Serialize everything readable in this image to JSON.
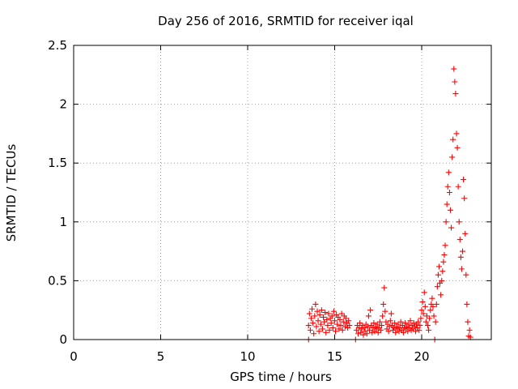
{
  "chart_data": {
    "type": "scatter",
    "title": "Day 256 of 2016, SRMTID for receiver iqal",
    "xlabel": "GPS time / hours",
    "ylabel": "SRMTID / TECUs",
    "xlim": [
      0,
      24
    ],
    "ylim": [
      0,
      2.5
    ],
    "xticks": [
      0,
      5,
      10,
      15,
      20
    ],
    "xtick_labels": [
      "0",
      "5",
      "10",
      "15",
      "20"
    ],
    "yticks": [
      0,
      0.5,
      1,
      1.5,
      2,
      2.5
    ],
    "ytick_labels": [
      "0",
      "0.5",
      "1",
      "1.5",
      "2",
      "2.5"
    ],
    "grid": true,
    "marker": "plus",
    "series": [
      {
        "name": "SRMTID",
        "color": "#ff0000",
        "points": [
          [
            13.5,
            0.0
          ],
          [
            13.5,
            0.12
          ],
          [
            13.55,
            0.22
          ],
          [
            13.6,
            0.08
          ],
          [
            13.65,
            0.18
          ],
          [
            13.7,
            0.26
          ],
          [
            13.75,
            0.14
          ],
          [
            13.8,
            0.05
          ],
          [
            13.85,
            0.2
          ],
          [
            13.9,
            0.3
          ],
          [
            13.95,
            0.11
          ],
          [
            14.0,
            0.24
          ],
          [
            14.05,
            0.16
          ],
          [
            14.1,
            0.07
          ],
          [
            14.15,
            0.21
          ],
          [
            14.2,
            0.13
          ],
          [
            14.25,
            0.25
          ],
          [
            14.3,
            0.09
          ],
          [
            14.35,
            0.19
          ],
          [
            14.4,
            0.15
          ],
          [
            14.45,
            0.23
          ],
          [
            14.5,
            0.06
          ],
          [
            14.55,
            0.17
          ],
          [
            14.6,
            0.12
          ],
          [
            14.65,
            0.22
          ],
          [
            14.7,
            0.08
          ],
          [
            14.75,
            0.18
          ],
          [
            14.8,
            0.14
          ],
          [
            14.85,
            0.2
          ],
          [
            14.9,
            0.1
          ],
          [
            14.95,
            0.24
          ],
          [
            15.0,
            0.16
          ],
          [
            15.05,
            0.07
          ],
          [
            15.1,
            0.21
          ],
          [
            15.15,
            0.13
          ],
          [
            15.2,
            0.19
          ],
          [
            15.25,
            0.09
          ],
          [
            15.3,
            0.17
          ],
          [
            15.35,
            0.12
          ],
          [
            15.4,
            0.22
          ],
          [
            15.45,
            0.08
          ],
          [
            15.5,
            0.15
          ],
          [
            15.55,
            0.2
          ],
          [
            15.6,
            0.11
          ],
          [
            15.65,
            0.18
          ],
          [
            15.7,
            0.14
          ],
          [
            15.75,
            0.1
          ],
          [
            15.8,
            0.16
          ],
          [
            15.85,
            0.12
          ],
          [
            16.2,
            0.0
          ],
          [
            16.25,
            0.08
          ],
          [
            16.3,
            0.12
          ],
          [
            16.35,
            0.05
          ],
          [
            16.4,
            0.1
          ],
          [
            16.45,
            0.14
          ],
          [
            16.5,
            0.06
          ],
          [
            16.55,
            0.09
          ],
          [
            16.6,
            0.12
          ],
          [
            16.65,
            0.04
          ],
          [
            16.7,
            0.1
          ],
          [
            16.75,
            0.07
          ],
          [
            16.8,
            0.13
          ],
          [
            16.85,
            0.05
          ],
          [
            16.9,
            0.11
          ],
          [
            16.95,
            0.2
          ],
          [
            17.0,
            0.08
          ],
          [
            17.05,
            0.25
          ],
          [
            17.1,
            0.12
          ],
          [
            17.15,
            0.06
          ],
          [
            17.2,
            0.1
          ],
          [
            17.25,
            0.14
          ],
          [
            17.3,
            0.07
          ],
          [
            17.35,
            0.11
          ],
          [
            17.4,
            0.09
          ],
          [
            17.45,
            0.13
          ],
          [
            17.5,
            0.06
          ],
          [
            17.55,
            0.1
          ],
          [
            17.6,
            0.15
          ],
          [
            17.65,
            0.08
          ],
          [
            17.7,
            0.12
          ],
          [
            17.75,
            0.2
          ],
          [
            17.8,
            0.3
          ],
          [
            17.85,
            0.44
          ],
          [
            17.9,
            0.24
          ],
          [
            17.95,
            0.15
          ],
          [
            18.0,
            0.09
          ],
          [
            18.05,
            0.13
          ],
          [
            18.1,
            0.07
          ],
          [
            18.15,
            0.11
          ],
          [
            18.2,
            0.16
          ],
          [
            18.25,
            0.22
          ],
          [
            18.3,
            0.12
          ],
          [
            18.35,
            0.08
          ],
          [
            18.4,
            0.1
          ],
          [
            18.45,
            0.14
          ],
          [
            18.5,
            0.06
          ],
          [
            18.55,
            0.11
          ],
          [
            18.6,
            0.09
          ],
          [
            18.65,
            0.13
          ],
          [
            18.7,
            0.07
          ],
          [
            18.75,
            0.1
          ],
          [
            18.8,
            0.15
          ],
          [
            18.85,
            0.08
          ],
          [
            18.9,
            0.12
          ],
          [
            18.95,
            0.06
          ],
          [
            19.0,
            0.1
          ],
          [
            19.05,
            0.14
          ],
          [
            19.1,
            0.09
          ],
          [
            19.15,
            0.11
          ],
          [
            19.2,
            0.07
          ],
          [
            19.25,
            0.13
          ],
          [
            19.3,
            0.1
          ],
          [
            19.35,
            0.16
          ],
          [
            19.4,
            0.08
          ],
          [
            19.45,
            0.12
          ],
          [
            19.5,
            0.09
          ],
          [
            19.55,
            0.14
          ],
          [
            19.6,
            0.11
          ],
          [
            19.65,
            0.07
          ],
          [
            19.7,
            0.13
          ],
          [
            19.75,
            0.1
          ],
          [
            19.8,
            0.15
          ],
          [
            19.85,
            0.08
          ],
          [
            19.9,
            0.12
          ],
          [
            19.95,
            0.18
          ],
          [
            20.0,
            0.25
          ],
          [
            20.05,
            0.32
          ],
          [
            20.1,
            0.22
          ],
          [
            20.15,
            0.4
          ],
          [
            20.2,
            0.28
          ],
          [
            20.25,
            0.15
          ],
          [
            20.3,
            0.2
          ],
          [
            20.35,
            0.12
          ],
          [
            20.4,
            0.08
          ],
          [
            20.45,
            0.18
          ],
          [
            20.5,
            0.25
          ],
          [
            20.55,
            0.3
          ],
          [
            20.6,
            0.35
          ],
          [
            20.65,
            0.28
          ],
          [
            20.7,
            0.2
          ],
          [
            20.75,
            0.0
          ],
          [
            20.8,
            0.15
          ],
          [
            20.85,
            0.3
          ],
          [
            20.9,
            0.45
          ],
          [
            20.95,
            0.55
          ],
          [
            21.0,
            0.62
          ],
          [
            21.05,
            0.48
          ],
          [
            21.1,
            0.38
          ],
          [
            21.15,
            0.5
          ],
          [
            21.2,
            0.58
          ],
          [
            21.25,
            0.66
          ],
          [
            21.3,
            0.72
          ],
          [
            21.35,
            0.8
          ],
          [
            21.4,
            1.0
          ],
          [
            21.45,
            1.15
          ],
          [
            21.5,
            1.3
          ],
          [
            21.55,
            1.42
          ],
          [
            21.6,
            1.25
          ],
          [
            21.65,
            1.1
          ],
          [
            21.7,
            0.95
          ],
          [
            21.75,
            1.55
          ],
          [
            21.8,
            1.7
          ],
          [
            21.85,
            2.3
          ],
          [
            21.9,
            2.19
          ],
          [
            21.95,
            2.09
          ],
          [
            22.0,
            1.75
          ],
          [
            22.05,
            1.63
          ],
          [
            22.1,
            1.3
          ],
          [
            22.15,
            1.0
          ],
          [
            22.2,
            0.85
          ],
          [
            22.25,
            0.7
          ],
          [
            22.3,
            0.6
          ],
          [
            22.35,
            0.75
          ],
          [
            22.4,
            1.36
          ],
          [
            22.45,
            1.2
          ],
          [
            22.5,
            0.9
          ],
          [
            22.55,
            0.55
          ],
          [
            22.6,
            0.3
          ],
          [
            22.65,
            0.15
          ],
          [
            22.7,
            0.03
          ],
          [
            22.75,
            0.08
          ],
          [
            22.8,
            0.02
          ]
        ]
      }
    ]
  }
}
